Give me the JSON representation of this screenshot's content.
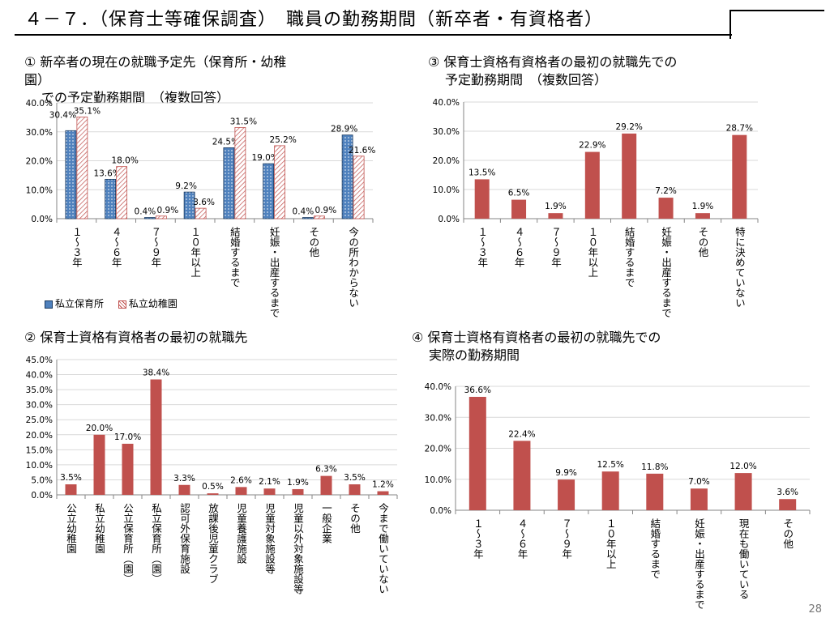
{
  "slide": {
    "title": "４－７．（保育士等確保調査）　職員の勤務期間（新卒者・有資格者）",
    "page_number": "28"
  },
  "panels": {
    "p1": {
      "line1": "① 新卒者の現在の就職予定先（保育所・幼稚",
      "line2": "園）",
      "line3": "での予定勤務期間　（複数回答）"
    },
    "p2": {
      "line1": "② 保育士資格有資格者の最初の就職先"
    },
    "p3": {
      "line1": "③ 保育士資格有資格者の最初の就職先での",
      "line2": "予定勤務期間　（複数回答）"
    },
    "p4": {
      "line1": "④ 保育士資格有資格者の最初の就職先での",
      "line2": "実際の勤務期間"
    }
  },
  "colors": {
    "blue": "#4f81bd",
    "red": "#c0504d",
    "grid": "#d9d9d9",
    "axis": "#868686"
  },
  "chart_data": [
    {
      "id": "chart1",
      "type": "bar",
      "categories": [
        "１～３年",
        "４～６年",
        "７～９年",
        "１０年以上",
        "結婚するまで",
        "妊娠・出産するまで",
        "その他",
        "今の所わからない"
      ],
      "series": [
        {
          "name": "私立保育所",
          "values": [
            30.4,
            13.6,
            0.4,
            9.2,
            24.5,
            19.0,
            0.4,
            28.9
          ],
          "labels": [
            "30.4%",
            "13.6%",
            "0.4%",
            "9.2%",
            "24.5%",
            "19.0%",
            "0.4%",
            "28.9%"
          ]
        },
        {
          "name": "私立幼稚園",
          "values": [
            35.1,
            18.0,
            0.9,
            3.6,
            31.5,
            25.2,
            0.9,
            21.6
          ],
          "labels": [
            "35.1%",
            "18.0%",
            "0.9%",
            "3.6%",
            "31.5%",
            "25.2%",
            "0.9%",
            "21.6%"
          ]
        }
      ],
      "ylim": [
        0,
        40
      ],
      "yticks": [
        "0.0%",
        "10.0%",
        "20.0%",
        "30.0%",
        "40.0%"
      ],
      "grid": true,
      "legend": "bottom-left"
    },
    {
      "id": "chart2",
      "type": "bar",
      "categories": [
        "公立幼稚園",
        "私立幼稚園",
        "公立保育所（園）",
        "私立保育所（園）",
        "認可外保育施設",
        "放課後児童クラブ",
        "児童養護施設",
        "児童対象施設等",
        "児童以外対象施設等",
        "一般企業",
        "その他",
        "今まで働いていない"
      ],
      "values": [
        3.5,
        20.0,
        17.0,
        38.4,
        3.3,
        0.5,
        2.6,
        2.1,
        1.9,
        6.3,
        3.5,
        1.2
      ],
      "labels": [
        "3.5%",
        "20.0%",
        "17.0%",
        "38.4%",
        "3.3%",
        "0.5%",
        "2.6%",
        "2.1%",
        "1.9%",
        "6.3%",
        "3.5%",
        "1.2%"
      ],
      "ylim": [
        0,
        45
      ],
      "yticks": [
        "0.0%",
        "5.0%",
        "10.0%",
        "15.0%",
        "20.0%",
        "25.0%",
        "30.0%",
        "35.0%",
        "40.0%",
        "45.0%"
      ],
      "grid": true
    },
    {
      "id": "chart3",
      "type": "bar",
      "categories": [
        "１～３年",
        "４～６年",
        "７～９年",
        "１０年以上",
        "結婚するまで",
        "妊娠・出産するまで",
        "その他",
        "特に決めていない"
      ],
      "values": [
        13.5,
        6.5,
        1.9,
        22.9,
        29.2,
        7.2,
        1.9,
        28.7
      ],
      "labels": [
        "13.5%",
        "6.5%",
        "1.9%",
        "22.9%",
        "29.2%",
        "7.2%",
        "1.9%",
        "28.7%"
      ],
      "ylim": [
        0,
        40
      ],
      "yticks": [
        "0.0%",
        "10.0%",
        "20.0%",
        "30.0%",
        "40.0%"
      ],
      "grid": true
    },
    {
      "id": "chart4",
      "type": "bar",
      "categories": [
        "１～３年",
        "４～６年",
        "７～９年",
        "１０年以上",
        "結婚するまで",
        "妊娠・出産するまで",
        "現在も働いている",
        "その他"
      ],
      "values": [
        36.6,
        22.4,
        9.9,
        12.5,
        11.8,
        7.0,
        12.0,
        3.6
      ],
      "labels": [
        "36.6%",
        "22.4%",
        "9.9%",
        "12.5%",
        "11.8%",
        "7.0%",
        "12.0%",
        "3.6%"
      ],
      "ylim": [
        0,
        40
      ],
      "yticks": [
        "0.0%",
        "10.0%",
        "20.0%",
        "30.0%",
        "40.0%"
      ],
      "grid": true
    }
  ]
}
